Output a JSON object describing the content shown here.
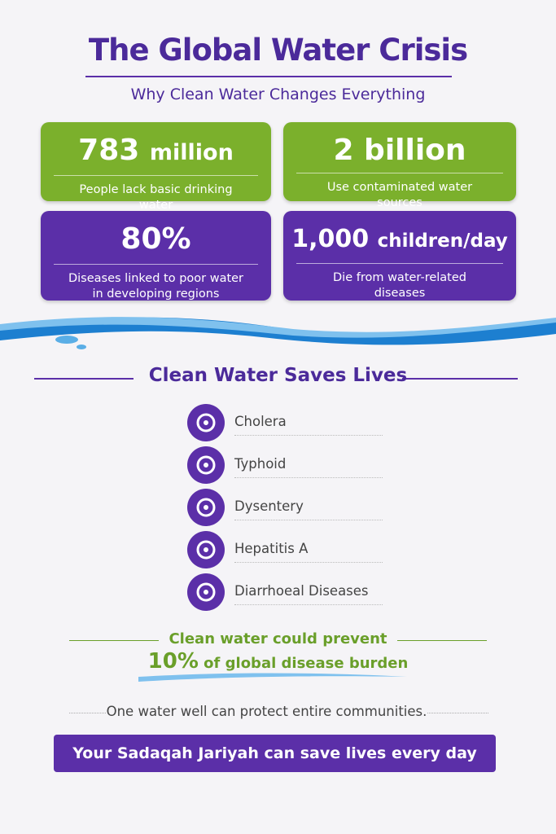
{
  "header": {
    "title": "The Global Water Crisis",
    "subtitle": "Why Clean Water Changes Everything"
  },
  "stats": [
    {
      "number": "783",
      "unit": "million",
      "label": "People lack basic drinking water"
    },
    {
      "number": "2",
      "unit": "billion",
      "label": "Use contaminated water sources"
    },
    {
      "number": "80%",
      "unit": "",
      "label": "Diseases linked to poor water in developing regions"
    },
    {
      "number": "1,000",
      "unit": "children/day",
      "label": "Die from water-related diseases"
    }
  ],
  "section": {
    "title": "Clean Water Saves Lives",
    "diseases": [
      "Cholera",
      "Typhoid",
      "Dysentery",
      "Hepatitis A",
      "Diarrhoeal Diseases"
    ]
  },
  "prevention": {
    "line1": "Clean water could prevent",
    "highlight": "10%",
    "line2": "of global disease burden"
  },
  "note": "One water well can protect entire communities.",
  "banner": "Your Sadaqah Jariyah can save lives every day"
}
